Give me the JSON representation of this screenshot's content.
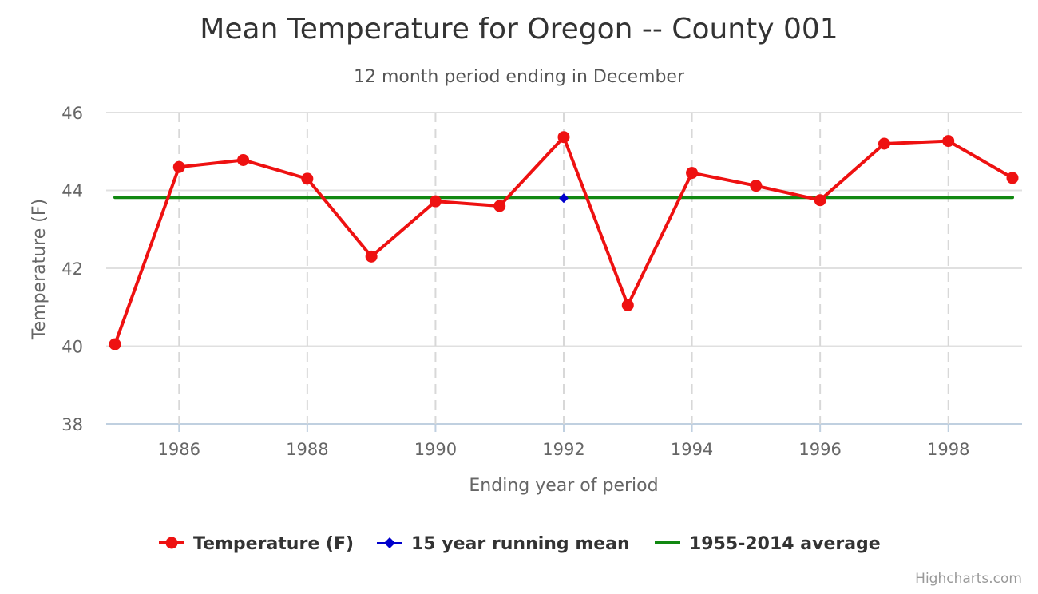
{
  "chart_data": {
    "type": "line",
    "title": "Mean Temperature for Oregon -- County 001",
    "subtitle": "12 month period ending in December",
    "xlabel": "Ending year of period",
    "ylabel": "Temperature (F)",
    "xlim": [
      1985,
      1999
    ],
    "ylim": [
      38,
      46
    ],
    "x_ticks": [
      "1986",
      "1988",
      "1990",
      "1992",
      "1994",
      "1996",
      "1998"
    ],
    "y_ticks": [
      "38",
      "40",
      "42",
      "44",
      "46"
    ],
    "grid": true,
    "legend_position": "bottom-center",
    "credits": "Highcharts.com",
    "series": [
      {
        "name": "Temperature (F)",
        "color": "#ee1111",
        "marker": "circle",
        "x": [
          1985,
          1986,
          1987,
          1988,
          1989,
          1990,
          1991,
          1992,
          1993,
          1994,
          1995,
          1996,
          1997,
          1998,
          1999
        ],
        "values": [
          40.05,
          44.6,
          44.78,
          44.3,
          42.3,
          43.72,
          43.6,
          45.37,
          41.05,
          44.45,
          44.12,
          43.75,
          45.2,
          45.27,
          44.32
        ]
      },
      {
        "name": "15 year running mean",
        "color": "#0000cc",
        "marker": "diamond",
        "x": [
          1992
        ],
        "values": [
          43.8
        ]
      },
      {
        "name": "1955-2014 average",
        "color": "#118811",
        "marker": "none",
        "x": [
          1985,
          1999
        ],
        "values": [
          43.82,
          43.82
        ]
      }
    ]
  }
}
